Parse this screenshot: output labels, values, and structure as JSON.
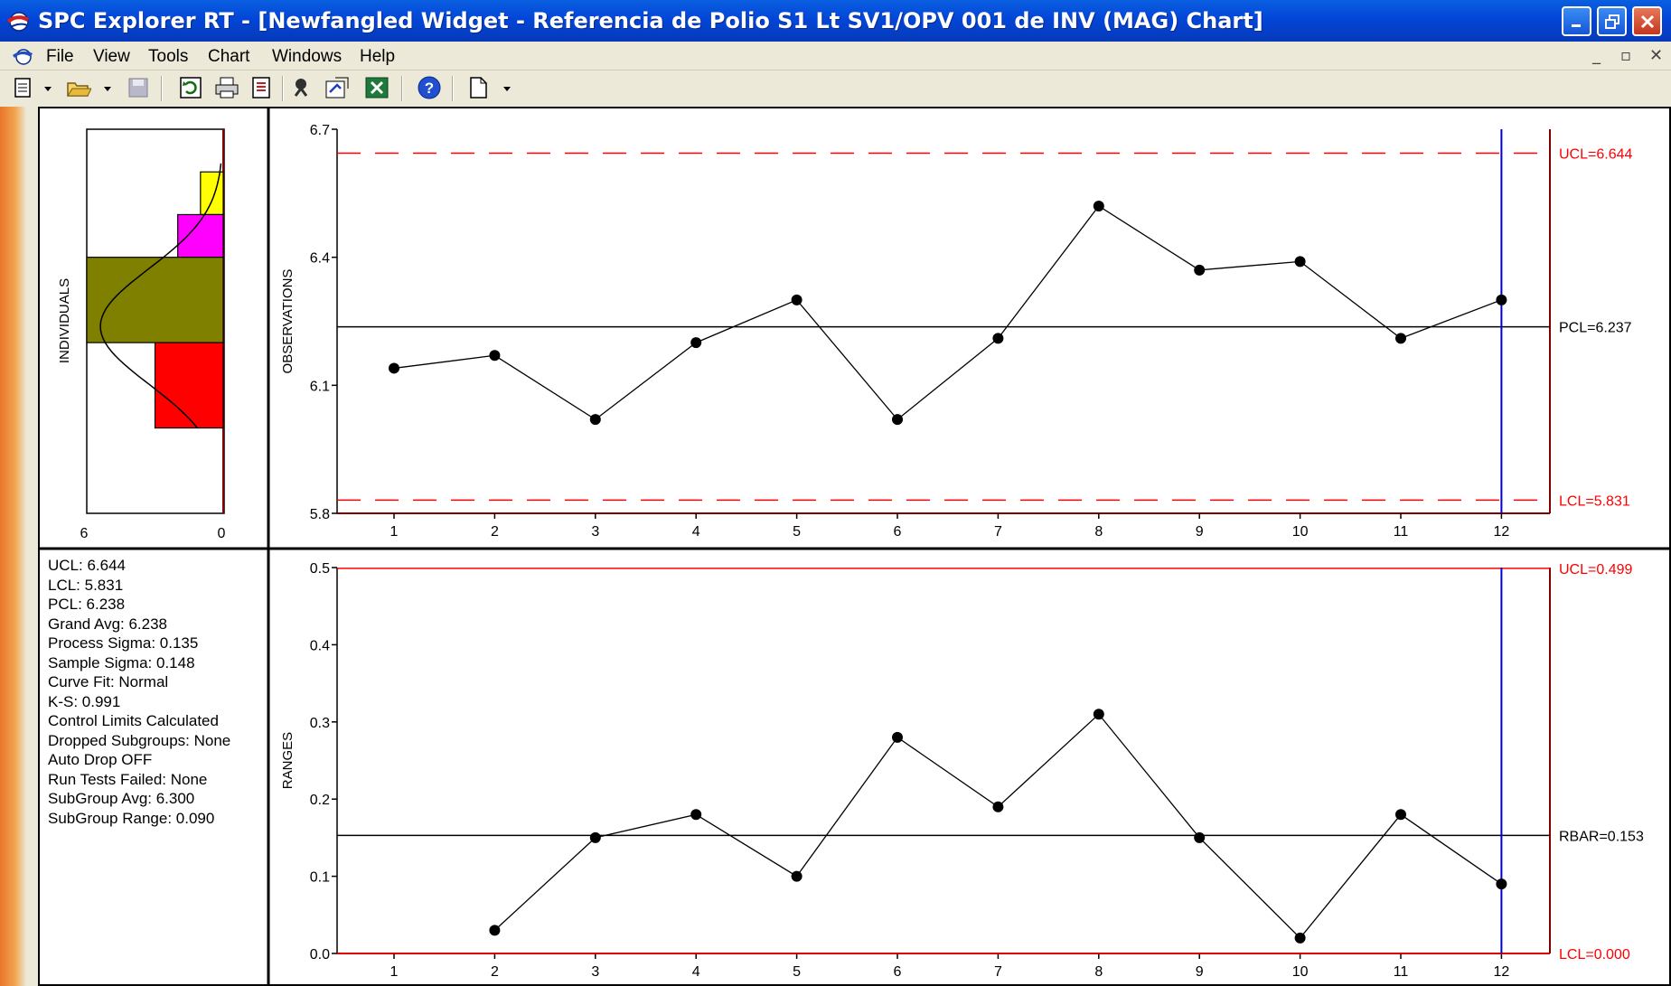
{
  "window": {
    "title": "SPC Explorer RT - [Newfangled Widget - Referencia de Polio S1 Lt SV1/OPV 001 de INV (MAG) Chart]"
  },
  "menu": [
    "File",
    "View",
    "Tools",
    "Chart",
    "Windows",
    "Help"
  ],
  "toolbar_icons": [
    "new-icon",
    "open-icon",
    "save-icon",
    "refresh-icon",
    "print-icon",
    "report-icon",
    "wizard-icon",
    "properties-icon",
    "excel-icon",
    "help-icon",
    "page-icon"
  ],
  "colors": {
    "limit": "#ff0000",
    "center": "#000000",
    "cursor": "#0000cc",
    "hist": [
      "#ffff00",
      "#ff00ff",
      "#808000",
      "#ff0000"
    ]
  },
  "histogram": {
    "ylabel": "INDIVIDUALS",
    "x_ticks": [
      "6",
      "0"
    ],
    "bins": [
      {
        "from": 6.5,
        "to": 6.6,
        "count": 1
      },
      {
        "from": 6.4,
        "to": 6.5,
        "count": 2
      },
      {
        "from": 6.2,
        "to": 6.4,
        "count": 6
      },
      {
        "from": 6.0,
        "to": 6.2,
        "count": 3
      }
    ],
    "xlim": [
      6,
      0
    ]
  },
  "stats": [
    "UCL: 6.644",
    "LCL: 5.831",
    "PCL: 6.238",
    "Grand Avg: 6.238",
    "Process Sigma: 0.135",
    "Sample Sigma: 0.148",
    "Curve Fit: Normal",
    "K-S: 0.991",
    "Control Limits Calculated",
    "Dropped Subgroups: None",
    "Auto Drop OFF",
    "Run Tests Failed: None",
    "SubGroup Avg: 6.300",
    "SubGroup Range: 0.090"
  ],
  "chart_data": [
    {
      "type": "line",
      "ylabel": "OBSERVATIONS",
      "x": [
        1,
        2,
        3,
        4,
        5,
        6,
        7,
        8,
        9,
        10,
        11,
        12
      ],
      "values": [
        6.14,
        6.17,
        6.02,
        6.2,
        6.3,
        6.02,
        6.21,
        6.52,
        6.37,
        6.39,
        6.21,
        6.3
      ],
      "ylim": [
        5.8,
        6.7
      ],
      "y_ticks": [
        "6.7",
        "6.4",
        "6.1",
        "5.8"
      ],
      "lines": [
        {
          "label": "UCL=6.644",
          "value": 6.644,
          "style": "dashed",
          "color": "#ff0000"
        },
        {
          "label": "PCL=6.237",
          "value": 6.237,
          "style": "solid",
          "color": "#000000"
        },
        {
          "label": "LCL=5.831",
          "value": 5.831,
          "style": "dashed",
          "color": "#ff0000"
        }
      ],
      "cursor_x": 12
    },
    {
      "type": "line",
      "ylabel": "RANGES",
      "x": [
        2,
        3,
        4,
        5,
        6,
        7,
        8,
        9,
        10,
        11,
        12
      ],
      "values": [
        0.03,
        0.15,
        0.18,
        0.1,
        0.28,
        0.19,
        0.31,
        0.15,
        0.02,
        0.18,
        0.09
      ],
      "ylim": [
        0,
        0.5
      ],
      "y_ticks": [
        "0.5",
        "0.4",
        "0.3",
        "0.2",
        "0.1",
        "0.0"
      ],
      "lines": [
        {
          "label": "UCL=0.499",
          "value": 0.499,
          "style": "solid",
          "color": "#ff0000"
        },
        {
          "label": "RBAR=0.153",
          "value": 0.153,
          "style": "solid",
          "color": "#000000"
        },
        {
          "label": "LCL=0.000",
          "value": 0.0,
          "style": "solid",
          "color": "#ff0000"
        }
      ],
      "cursor_x": 12
    }
  ]
}
